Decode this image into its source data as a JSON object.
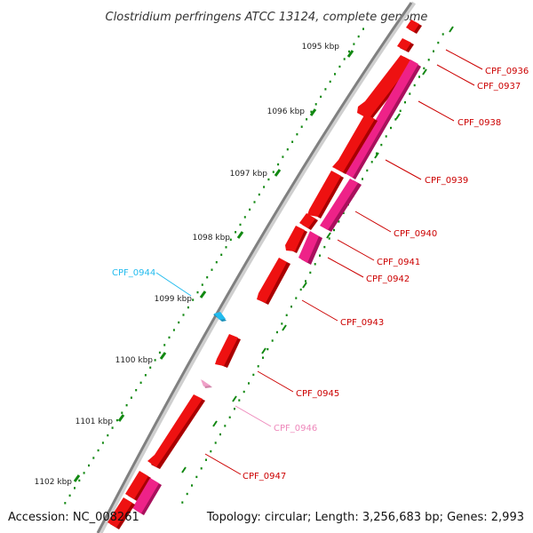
{
  "title": "Clostridium perfringens ATCC 13124, complete genome",
  "footer": {
    "accession": "Accession: NC_008261",
    "summary": "Topology: circular; Length: 3,256,683 bp; Genes: 2,993"
  },
  "colors": {
    "gene_red": "#ee1111",
    "gene_red_dark": "#a80000",
    "gene_magenta": "#ee2288",
    "gene_magenta_dark": "#a8105c",
    "gene_pink": "#f0a0c8",
    "gene_cyan": "#22bbee",
    "backbone": "#808080",
    "tick_green": "#118811",
    "label_red": "#cc0000",
    "label_pink": "#ee88bb",
    "label_cyan": "#22bbee"
  },
  "ticks": [
    {
      "label": "1095 kbp",
      "major": true
    },
    {
      "label": "1096 kbp",
      "major": true
    },
    {
      "label": "1097 kbp",
      "major": true
    },
    {
      "label": "1098 kbp",
      "major": true
    },
    {
      "label": "1099 kbp",
      "major": true
    },
    {
      "label": "1100 kbp",
      "major": true
    },
    {
      "label": "1101 kbp",
      "major": true
    },
    {
      "label": "1102 kbp",
      "major": true
    }
  ],
  "genes": [
    {
      "id": "CPF_0936",
      "label": "CPF_0936",
      "color": "label_red"
    },
    {
      "id": "CPF_0937",
      "label": "CPF_0937",
      "color": "label_red"
    },
    {
      "id": "CPF_0938",
      "label": "CPF_0938",
      "color": "label_red"
    },
    {
      "id": "CPF_0939",
      "label": "CPF_0939",
      "color": "label_red"
    },
    {
      "id": "CPF_0940",
      "label": "CPF_0940",
      "color": "label_red"
    },
    {
      "id": "CPF_0941",
      "label": "CPF_0941",
      "color": "label_red"
    },
    {
      "id": "CPF_0942",
      "label": "CPF_0942",
      "color": "label_red"
    },
    {
      "id": "CPF_0943",
      "label": "CPF_0943",
      "color": "label_red"
    },
    {
      "id": "CPF_0944",
      "label": "CPF_0944",
      "color": "label_cyan"
    },
    {
      "id": "CPF_0945",
      "label": "CPF_0945",
      "color": "label_red"
    },
    {
      "id": "CPF_0946",
      "label": "CPF_0946",
      "color": "label_pink"
    },
    {
      "id": "CPF_0947",
      "label": "CPF_0947",
      "color": "label_red"
    }
  ]
}
